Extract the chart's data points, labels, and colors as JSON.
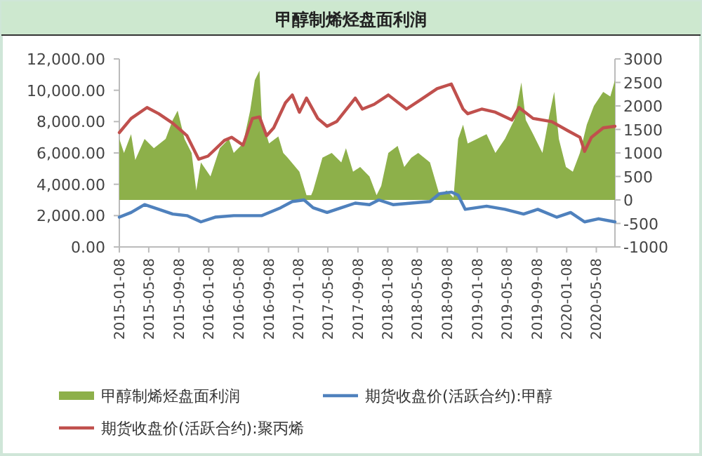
{
  "chart_data": {
    "type": "line",
    "title": "甲醇制烯烃盘面利润",
    "xlim": [
      "2015-01-08",
      "2020-07-23"
    ],
    "xticks": [
      "2015-01-08",
      "2015-05-08",
      "2015-09-08",
      "2016-01-08",
      "2016-05-08",
      "2016-09-08",
      "2017-01-08",
      "2017-05-08",
      "2017-09-08",
      "2018-01-08",
      "2018-05-08",
      "2018-09-08",
      "2019-01-08",
      "2019-05-08",
      "2019-09-08",
      "2020-01-08",
      "2020-05-08"
    ],
    "ylim": [
      0,
      12000
    ],
    "yticks": [
      {
        "value": 0,
        "label": "0.00"
      },
      {
        "value": 2000,
        "label": "2,000.00"
      },
      {
        "value": 4000,
        "label": "4,000.00"
      },
      {
        "value": 6000,
        "label": "6,000.00"
      },
      {
        "value": 8000,
        "label": "8,000.00"
      },
      {
        "value": 10000,
        "label": "10,000.00"
      },
      {
        "value": 12000,
        "label": "12,000.00"
      }
    ],
    "y2lim": [
      -1000,
      3000
    ],
    "y2ticks": [
      -1000,
      -500,
      0,
      500,
      1000,
      1500,
      2000,
      2500,
      3000
    ],
    "grid": false,
    "legend": "bottom",
    "series": [
      {
        "name": "甲醇制烯烃盘面利润",
        "type": "area",
        "axis": "y2",
        "color": "#8db04a",
        "x": [
          "2015-01-08",
          "2015-01-27",
          "2015-02-25",
          "2015-03-14",
          "2015-04-21",
          "2015-05-29",
          "2015-07-16",
          "2015-08-14",
          "2015-09-03",
          "2015-10-01",
          "2015-10-30",
          "2015-11-18",
          "2015-12-07",
          "2016-01-15",
          "2016-02-22",
          "2016-03-30",
          "2016-04-19",
          "2016-05-27",
          "2016-06-25",
          "2016-07-14",
          "2016-08-02",
          "2016-08-12",
          "2016-09-10",
          "2016-10-18",
          "2016-11-07",
          "2016-11-25",
          "2017-01-12",
          "2017-02-10",
          "2017-03-01",
          "2017-03-09",
          "2017-04-16",
          "2017-05-24",
          "2017-07-02",
          "2017-07-21",
          "2017-08-19",
          "2017-09-17",
          "2017-10-25",
          "2017-11-23",
          "2017-12-12",
          "2018-01-10",
          "2018-02-17",
          "2018-03-16",
          "2018-04-14",
          "2018-05-12",
          "2018-06-29",
          "2018-08-07",
          "2018-09-05",
          "2018-10-03",
          "2018-10-22",
          "2018-11-11",
          "2018-11-30",
          "2019-01-07",
          "2019-02-15",
          "2019-03-23",
          "2019-05-01",
          "2019-06-08",
          "2019-07-07",
          "2019-07-25",
          "2019-08-24",
          "2019-10-01",
          "2019-10-29",
          "2019-11-18",
          "2019-12-07",
          "2020-01-05",
          "2020-02-02",
          "2020-03-02",
          "2020-03-30",
          "2020-04-28",
          "2020-06-05",
          "2020-07-04",
          "2020-07-23"
        ],
        "values": [
          1300,
          1000,
          1400,
          850,
          1300,
          1100,
          1300,
          1700,
          1900,
          1300,
          1000,
          200,
          800,
          500,
          1100,
          1300,
          1000,
          1200,
          1900,
          2550,
          2750,
          1700,
          1200,
          1350,
          1000,
          900,
          600,
          100,
          100,
          200,
          900,
          1000,
          800,
          1100,
          600,
          700,
          500,
          100,
          300,
          1000,
          1150,
          700,
          900,
          1000,
          800,
          100,
          200,
          50,
          1300,
          1600,
          1200,
          1300,
          1400,
          1000,
          1300,
          1700,
          2500,
          1700,
          1400,
          1000,
          1800,
          2300,
          1300,
          700,
          600,
          1000,
          1600,
          2000,
          2300,
          2200,
          2550
        ]
      },
      {
        "name": "期货收盘价(活跃合约):甲醇",
        "type": "line",
        "axis": "y",
        "color": "#4f81bd",
        "x": [
          "2015-01-08",
          "2015-02-25",
          "2015-04-21",
          "2015-06-18",
          "2015-08-14",
          "2015-10-11",
          "2015-12-07",
          "2016-02-03",
          "2016-04-19",
          "2016-06-15",
          "2016-08-12",
          "2016-10-27",
          "2016-12-14",
          "2017-01-31",
          "2017-03-09",
          "2017-05-05",
          "2017-07-02",
          "2017-08-28",
          "2017-10-25",
          "2017-12-02",
          "2018-01-29",
          "2018-04-14",
          "2018-06-29",
          "2018-08-07",
          "2018-09-24",
          "2018-10-22",
          "2018-11-20",
          "2019-02-15",
          "2019-05-01",
          "2019-07-16",
          "2019-09-12",
          "2019-11-28",
          "2020-01-24",
          "2020-03-21",
          "2020-05-17",
          "2020-07-23"
        ],
        "values": [
          1900,
          2200,
          2700,
          2400,
          2100,
          2000,
          1600,
          1900,
          2000,
          2000,
          2000,
          2500,
          2900,
          3000,
          2500,
          2200,
          2500,
          2800,
          2700,
          3000,
          2700,
          2800,
          2900,
          3400,
          3500,
          3300,
          2400,
          2600,
          2400,
          2100,
          2400,
          1900,
          2200,
          1600,
          1800,
          1600
        ]
      },
      {
        "name": "期货收盘价(活跃合约):聚丙烯",
        "type": "line",
        "axis": "y",
        "color": "#c0504d",
        "x": [
          "2015-01-08",
          "2015-02-25",
          "2015-05-01",
          "2015-06-18",
          "2015-08-14",
          "2015-10-11",
          "2015-11-28",
          "2016-01-05",
          "2016-03-12",
          "2016-04-10",
          "2016-05-27",
          "2016-07-04",
          "2016-08-02",
          "2016-08-31",
          "2016-09-29",
          "2016-11-16",
          "2016-12-14",
          "2017-01-12",
          "2017-02-10",
          "2017-03-28",
          "2017-05-05",
          "2017-06-13",
          "2017-08-28",
          "2017-09-26",
          "2017-11-13",
          "2018-01-10",
          "2018-03-25",
          "2018-05-22",
          "2018-07-28",
          "2018-09-24",
          "2018-11-11",
          "2018-11-30",
          "2019-01-26",
          "2019-03-23",
          "2019-05-29",
          "2019-06-27",
          "2019-08-24",
          "2019-11-08",
          "2020-01-15",
          "2020-03-02",
          "2020-03-21",
          "2020-04-18",
          "2020-06-05",
          "2020-07-23"
        ],
        "values": [
          7300,
          8200,
          8900,
          8500,
          7900,
          7100,
          5600,
          5800,
          6800,
          7000,
          6500,
          8200,
          8300,
          7100,
          7600,
          9200,
          9700,
          8600,
          9500,
          8200,
          7700,
          8000,
          9500,
          8800,
          9100,
          9700,
          8800,
          9400,
          10100,
          10400,
          8800,
          8500,
          8800,
          8600,
          8100,
          8900,
          8200,
          8000,
          7400,
          7000,
          6100,
          7000,
          7600,
          7700
        ]
      }
    ]
  }
}
